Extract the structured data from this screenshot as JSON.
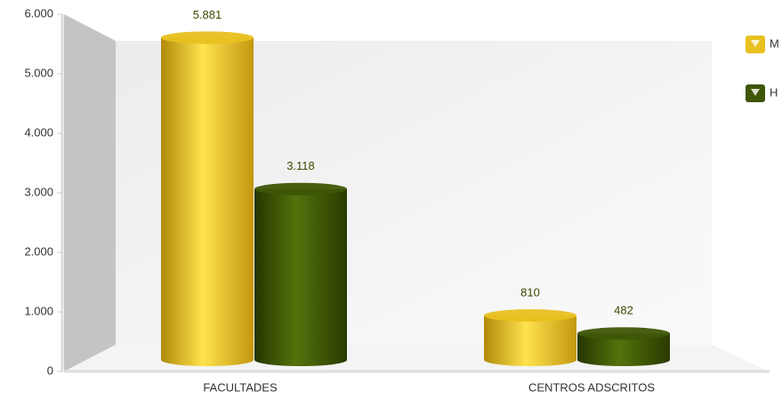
{
  "chart_data": {
    "type": "bar",
    "categories": [
      "FACULTADES",
      "CENTROS ADSCRITOS"
    ],
    "series": [
      {
        "name": "M",
        "color": "#e8c020",
        "values": [
          5881,
          810
        ],
        "value_labels": [
          "5.881",
          "810"
        ]
      },
      {
        "name": "H",
        "color": "#3e5606",
        "values": [
          3118,
          482
        ],
        "value_labels": [
          "3.118",
          "482"
        ]
      }
    ],
    "ylim": [
      0,
      6000
    ],
    "yticks": [
      0,
      {
        "value": 1000,
        "label": "1.000"
      },
      {
        "value": 2000,
        "label": "2.000"
      },
      {
        "value": 3000,
        "label": "3.000"
      },
      {
        "value": 4000,
        "label": "4.000"
      },
      {
        "value": 5000,
        "label": "5.000"
      },
      {
        "value": 6000,
        "label": "6.000"
      }
    ],
    "legend": "right"
  }
}
